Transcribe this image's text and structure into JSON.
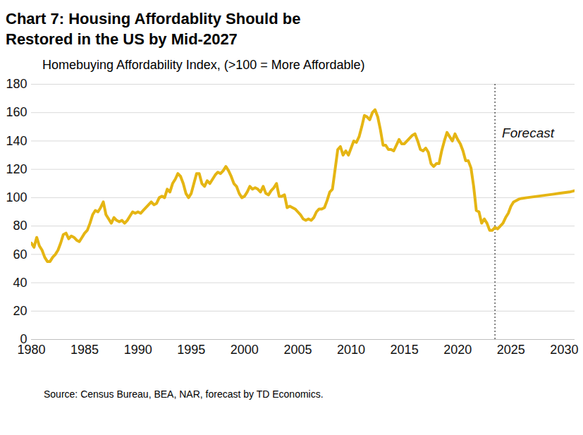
{
  "chart_data": {
    "type": "line",
    "title": "Chart 7: Housing Affordablity Should be Restored in the US by Mid-2027",
    "subtitle": "Homebuying Affordability Index, (>100 = More Affordable)",
    "source": "Source: Census Bureau, BEA, NAR, forecast by TD Economics.",
    "color": "#e5b513",
    "grid": true,
    "xlim": [
      1980,
      2031
    ],
    "xticks": [
      1980,
      1985,
      1990,
      1995,
      2000,
      2005,
      2010,
      2015,
      2020,
      2025,
      2030
    ],
    "ylim": [
      0,
      180
    ],
    "yticks": [
      0,
      20,
      40,
      60,
      80,
      100,
      120,
      140,
      160,
      180
    ],
    "annotations": [
      {
        "text": "Forecast",
        "x": 2023.5
      }
    ],
    "x": [
      1980,
      1980.25,
      1980.5,
      1980.75,
      1981,
      1981.25,
      1981.5,
      1981.75,
      1982,
      1982.25,
      1982.5,
      1982.75,
      1983,
      1983.25,
      1983.5,
      1983.75,
      1984,
      1984.25,
      1984.5,
      1984.75,
      1985,
      1985.25,
      1985.5,
      1985.75,
      1986,
      1986.25,
      1986.5,
      1986.75,
      1987,
      1987.25,
      1987.5,
      1987.75,
      1988,
      1988.25,
      1988.5,
      1988.75,
      1989,
      1989.25,
      1989.5,
      1989.75,
      1990,
      1990.25,
      1990.5,
      1990.75,
      1991,
      1991.25,
      1991.5,
      1991.75,
      1992,
      1992.25,
      1992.5,
      1992.75,
      1993,
      1993.25,
      1993.5,
      1993.75,
      1994,
      1994.25,
      1994.5,
      1994.75,
      1995,
      1995.25,
      1995.5,
      1995.75,
      1996,
      1996.25,
      1996.5,
      1996.75,
      1997,
      1997.25,
      1997.5,
      1997.75,
      1998,
      1998.25,
      1998.5,
      1998.75,
      1999,
      1999.25,
      1999.5,
      1999.75,
      2000,
      2000.25,
      2000.5,
      2000.75,
      2001,
      2001.25,
      2001.5,
      2001.75,
      2002,
      2002.25,
      2002.5,
      2002.75,
      2003,
      2003.25,
      2003.5,
      2003.75,
      2004,
      2004.25,
      2004.5,
      2004.75,
      2005,
      2005.25,
      2005.5,
      2005.75,
      2006,
      2006.25,
      2006.5,
      2006.75,
      2007,
      2007.25,
      2007.5,
      2007.75,
      2008,
      2008.25,
      2008.5,
      2008.75,
      2009,
      2009.25,
      2009.5,
      2009.75,
      2010,
      2010.25,
      2010.5,
      2010.75,
      2011,
      2011.25,
      2011.5,
      2011.75,
      2012,
      2012.25,
      2012.5,
      2012.75,
      2013,
      2013.25,
      2013.5,
      2013.75,
      2014,
      2014.25,
      2014.5,
      2014.75,
      2015,
      2015.25,
      2015.5,
      2015.75,
      2016,
      2016.25,
      2016.5,
      2016.75,
      2017,
      2017.25,
      2017.5,
      2017.75,
      2018,
      2018.25,
      2018.5,
      2018.75,
      2019,
      2019.25,
      2019.5,
      2019.75,
      2020,
      2020.25,
      2020.5,
      2020.75,
      2021,
      2021.25,
      2021.5,
      2021.75,
      2022,
      2022.25,
      2022.5,
      2022.75,
      2023,
      2023.25,
      2023.5,
      2023.75,
      2024,
      2024.25,
      2024.5,
      2024.75,
      2025,
      2025.25,
      2025.5,
      2025.75,
      2026,
      2026.5,
      2027,
      2027.5,
      2028,
      2028.5,
      2029,
      2029.5,
      2030,
      2030.5,
      2031
    ],
    "values": [
      68,
      65,
      72,
      66,
      63,
      58,
      55,
      55,
      58,
      60,
      63,
      68,
      74,
      75,
      71,
      73,
      72,
      70,
      69,
      72,
      75,
      77,
      82,
      88,
      91,
      90,
      93,
      97,
      88,
      85,
      82,
      86,
      84,
      83,
      84,
      82,
      84,
      87,
      90,
      89,
      90,
      89,
      91,
      93,
      95,
      97,
      95,
      96,
      100,
      101,
      100,
      106,
      104,
      110,
      113,
      117,
      115,
      110,
      103,
      100,
      103,
      110,
      117,
      117,
      110,
      108,
      112,
      110,
      113,
      116,
      118,
      117,
      119,
      122,
      119,
      115,
      110,
      108,
      103,
      100,
      101,
      104,
      108,
      106,
      107,
      106,
      104,
      108,
      103,
      102,
      105,
      107,
      110,
      101,
      101,
      102,
      93,
      94,
      93,
      92,
      90,
      88,
      85,
      84,
      85,
      84,
      86,
      90,
      92,
      92,
      93,
      98,
      104,
      106,
      120,
      134,
      136,
      130,
      133,
      130,
      135,
      140,
      139,
      143,
      150,
      158,
      157,
      155,
      160,
      162,
      157,
      148,
      137,
      137,
      134,
      134,
      133,
      137,
      141,
      138,
      138,
      140,
      142,
      144,
      145,
      140,
      134,
      133,
      135,
      132,
      124,
      122,
      124,
      124,
      133,
      140,
      146,
      143,
      140,
      145,
      141,
      138,
      133,
      126,
      126,
      121,
      108,
      91,
      90,
      82,
      85,
      82,
      77,
      77,
      79,
      78,
      80,
      82,
      86,
      89,
      94,
      97,
      98,
      99,
      99.5,
      100,
      100.5,
      101,
      101.5,
      102,
      102.5,
      103,
      103.5,
      104,
      105
    ]
  }
}
